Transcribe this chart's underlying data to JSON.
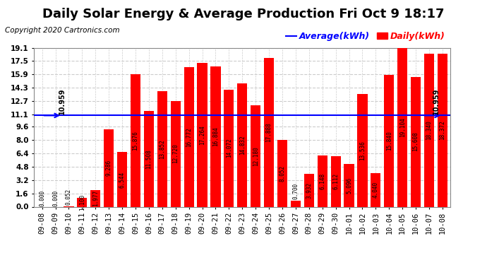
{
  "title": "Daily Solar Energy & Average Production Fri Oct 9 18:17",
  "copyright": "Copyright 2020 Cartronics.com",
  "average_value": 10.959,
  "average_label": "Average(kWh)",
  "daily_label": "Daily(kWh)",
  "bar_color": "#FF0000",
  "average_line_color": "#0000FF",
  "background_color": "#FFFFFF",
  "grid_color": "#CCCCCC",
  "categories": [
    "09-08",
    "09-09",
    "09-10",
    "09-11",
    "09-12",
    "09-13",
    "09-14",
    "09-15",
    "09-16",
    "09-17",
    "09-18",
    "09-19",
    "09-20",
    "09-21",
    "09-22",
    "09-23",
    "09-24",
    "09-25",
    "09-26",
    "09-27",
    "09-28",
    "09-29",
    "09-30",
    "10-01",
    "10-02",
    "10-03",
    "10-04",
    "10-05",
    "10-06",
    "10-07",
    "10-08"
  ],
  "values": [
    0.0,
    0.0,
    0.052,
    1.1,
    1.977,
    9.286,
    6.544,
    15.876,
    11.508,
    13.852,
    12.72,
    16.772,
    17.264,
    16.884,
    14.072,
    14.832,
    12.18,
    17.888,
    8.052,
    0.7,
    3.932,
    6.148,
    6.112,
    5.096,
    13.536,
    4.04,
    15.84,
    19.104,
    15.608,
    18.34,
    18.372
  ],
  "ylim": [
    0,
    19.1
  ],
  "yticks": [
    0.0,
    1.6,
    3.2,
    4.8,
    6.4,
    8.0,
    9.6,
    11.1,
    12.7,
    14.3,
    15.9,
    17.5,
    19.1
  ],
  "title_fontsize": 13,
  "axis_fontsize": 7.5,
  "bar_label_fontsize": 5.5,
  "avg_label_fontsize": 7,
  "legend_fontsize": 9,
  "copyright_fontsize": 7.5,
  "arrow_color": "#0000FF"
}
